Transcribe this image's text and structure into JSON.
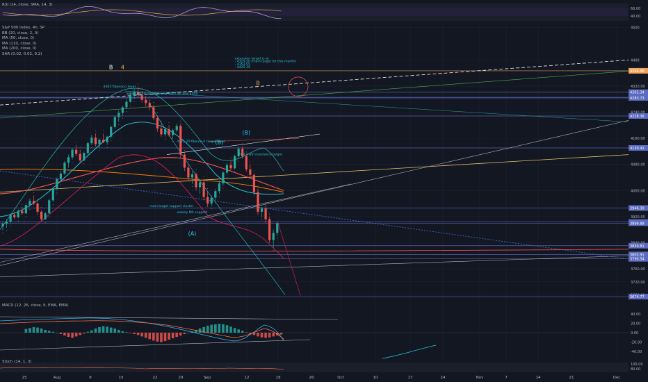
{
  "chart_data": {
    "type": "line",
    "title": "S&P 500 Index, 4h, SP",
    "x_ticks": [
      "25",
      "Aug",
      "8",
      "15",
      "22",
      "29",
      "Sep",
      "12",
      "19",
      "26",
      "Oct",
      "10",
      "17",
      "24",
      "Nov",
      "7",
      "14",
      "21",
      "Dec"
    ],
    "y_ticks": [
      "4500",
      "4400",
      "4320.00",
      "4240.00",
      "4160.00",
      "4080.00",
      "4000.00",
      "3920.00",
      "3840.00",
      "3760.00",
      "3720.00",
      "3680.00"
    ],
    "ylim": [
      3660,
      4520
    ],
    "price_labels": [
      {
        "text": "4366.88",
        "value": 4366.88,
        "color": "#f0a35c"
      },
      {
        "text": "4301.34",
        "value": 4301.34,
        "color": "#5c6bc0"
      },
      {
        "text": "4285.75",
        "value": 4285.75,
        "color": "#5c6bc0"
      },
      {
        "text": "4283.73",
        "value": 4283.73,
        "color": "#5c6bc0"
      },
      {
        "text": "4228.36",
        "value": 4228.36,
        "color": "#5c6bc0"
      },
      {
        "text": "4130.42",
        "value": 4130.42,
        "color": "#5c6bc0"
      },
      {
        "text": "3946.30",
        "value": 3946.3,
        "color": "#5c6bc0"
      },
      {
        "text": "3903.42",
        "value": 3903.42,
        "color": "#5c6bc0"
      },
      {
        "text": "3899.88",
        "value": 3899.88,
        "color": "#5c6bc0"
      },
      {
        "text": "3830.81",
        "value": 3830.81,
        "color": "#5c6bc0"
      },
      {
        "text": "3803.91",
        "value": 3803.91,
        "color": "#5c6bc0"
      },
      {
        "text": "3790.54",
        "value": 3790.54,
        "color": "#5c6bc0"
      },
      {
        "text": "3674.77",
        "value": 3674.77,
        "color": "#5c6bc0"
      }
    ],
    "candles": [
      [
        3890,
        3905,
        3878,
        3898
      ],
      [
        3898,
        3912,
        3885,
        3905
      ],
      [
        3905,
        3930,
        3900,
        3925
      ],
      [
        3925,
        3935,
        3912,
        3918
      ],
      [
        3918,
        3942,
        3915,
        3938
      ],
      [
        3938,
        3950,
        3925,
        3930
      ],
      [
        3930,
        3960,
        3928,
        3955
      ],
      [
        3955,
        3975,
        3950,
        3968
      ],
      [
        3968,
        3985,
        3955,
        3960
      ],
      [
        3960,
        3965,
        3925,
        3935
      ],
      [
        3935,
        3940,
        3905,
        3912
      ],
      [
        3912,
        3935,
        3910,
        3930
      ],
      [
        3930,
        3975,
        3928,
        3970
      ],
      [
        3970,
        4010,
        3965,
        4005
      ],
      [
        4005,
        4040,
        4000,
        4035
      ],
      [
        4035,
        4060,
        4025,
        4052
      ],
      [
        4052,
        4090,
        4048,
        4085
      ],
      [
        4085,
        4110,
        4070,
        4102
      ],
      [
        4102,
        4130,
        4095,
        4125
      ],
      [
        4125,
        4140,
        4105,
        4112
      ],
      [
        4112,
        4125,
        4085,
        4092
      ],
      [
        4092,
        4120,
        4090,
        4115
      ],
      [
        4115,
        4150,
        4110,
        4145
      ],
      [
        4145,
        4170,
        4140,
        4162
      ],
      [
        4162,
        4175,
        4135,
        4142
      ],
      [
        4142,
        4160,
        4130,
        4155
      ],
      [
        4155,
        4175,
        4145,
        4148
      ],
      [
        4148,
        4168,
        4140,
        4165
      ],
      [
        4165,
        4200,
        4160,
        4195
      ],
      [
        4195,
        4230,
        4190,
        4225
      ],
      [
        4225,
        4245,
        4210,
        4238
      ],
      [
        4238,
        4260,
        4230,
        4255
      ],
      [
        4255,
        4280,
        4250,
        4272
      ],
      [
        4272,
        4300,
        4268,
        4290
      ],
      [
        4290,
        4312,
        4280,
        4302
      ],
      [
        4302,
        4318,
        4285,
        4292
      ],
      [
        4292,
        4305,
        4270,
        4278
      ],
      [
        4278,
        4290,
        4255,
        4268
      ],
      [
        4268,
        4280,
        4245,
        4255
      ],
      [
        4255,
        4262,
        4215,
        4222
      ],
      [
        4222,
        4230,
        4180,
        4190
      ],
      [
        4190,
        4205,
        4165,
        4172
      ],
      [
        4172,
        4195,
        4165,
        4188
      ],
      [
        4188,
        4200,
        4165,
        4170
      ],
      [
        4170,
        4190,
        4158,
        4185
      ],
      [
        4185,
        4205,
        4178,
        4198
      ],
      [
        4198,
        4205,
        4100,
        4110
      ],
      [
        4110,
        4115,
        4060,
        4070
      ],
      [
        4070,
        4080,
        4030,
        4040
      ],
      [
        4040,
        4060,
        4020,
        4050
      ],
      [
        4050,
        4055,
        4000,
        4010
      ],
      [
        4010,
        4030,
        3990,
        4025
      ],
      [
        4025,
        4035,
        3970,
        3980
      ],
      [
        3980,
        3998,
        3950,
        3960
      ],
      [
        3960,
        3985,
        3952,
        3978
      ],
      [
        3978,
        4005,
        3970,
        3998
      ],
      [
        3998,
        4030,
        3990,
        4022
      ],
      [
        4022,
        4060,
        4015,
        4055
      ],
      [
        4055,
        4085,
        4048,
        4078
      ],
      [
        4078,
        4092,
        4060,
        4068
      ],
      [
        4068,
        4110,
        4065,
        4105
      ],
      [
        4105,
        4135,
        4098,
        4128
      ],
      [
        4128,
        4135,
        4098,
        4105
      ],
      [
        4105,
        4110,
        4058,
        4065
      ],
      [
        4065,
        4080,
        4040,
        4048
      ],
      [
        4048,
        4052,
        3985,
        3995
      ],
      [
        3995,
        4005,
        3925,
        3935
      ],
      [
        3935,
        3950,
        3918,
        3945
      ],
      [
        3945,
        3955,
        3900,
        3912
      ],
      [
        3912,
        3920,
        3840,
        3848
      ],
      [
        3848,
        3880,
        3825,
        3870
      ],
      [
        3870,
        3905,
        3862,
        3900
      ]
    ],
    "annotations": [
      {
        "text": "B",
        "price": 4372,
        "candle": 28,
        "color": "#ffffff"
      },
      {
        "text": "4",
        "price": 4372,
        "candle": 31,
        "color": "#f0a35c"
      },
      {
        "text": "(B)",
        "price": 4172,
        "candle": 63,
        "color": "#26c6da"
      },
      {
        "text": "(B)",
        "price": 4142,
        "candle": 56,
        "color": "#26c6da"
      },
      {
        "text": "(A)",
        "price": 3862,
        "candle": 49,
        "color": "#26c6da"
      },
      {
        "text": "B",
        "price": 4323,
        "candle": 66,
        "color": "#f0a35c"
      }
    ],
    "notes": [
      {
        "text": "extension target is at",
        "price": 4402,
        "candle": 60
      },
      {
        "text": "- 4315-20  (main target for this month)",
        "price": 4393,
        "candle": 60
      },
      {
        "text": "- 4353-55",
        "price": 4384,
        "candle": 60
      },
      {
        "text": "- 4425-35",
        "price": 4375,
        "candle": 60
      },
      {
        "text": "4305 fibonacci level",
        "price": 4316,
        "candle": 26
      },
      {
        "text": "weekly MA1 resistance at 4267.80 and 4305",
        "price": 4293,
        "candle": 32
      },
      {
        "text": "4125.20 fibonacci target level",
        "price": 4148,
        "candle": 45
      },
      {
        "text": "First main resistance target",
        "price": 4108,
        "candle": 61
      },
      {
        "text": "main target support cluster",
        "price": 3950,
        "candle": 38
      },
      {
        "text": "weekly MA support",
        "price": 3930,
        "candle": 45
      }
    ],
    "rsi": {
      "label": "RSI (14, close, SMA, 14, 3)",
      "ticks": [
        "60.00",
        "40.00"
      ],
      "ylim": [
        20,
        80
      ]
    },
    "macd": {
      "label": "MACD (12, 26, close, 9, EMA, EMA)",
      "ticks": [
        "40.00",
        "20.00",
        "0.00",
        "-20.00",
        "-40.00"
      ],
      "ylim": [
        -55,
        55
      ],
      "hist": [
        8,
        10,
        12,
        11,
        9,
        6,
        4,
        2,
        0,
        -3,
        -6,
        -9,
        -11,
        -8,
        -5,
        -2,
        2,
        5,
        9,
        12,
        14,
        13,
        11,
        9,
        6,
        3,
        1,
        -1,
        -3,
        -5,
        -8,
        -11,
        -14,
        -17,
        -19,
        -20,
        -18,
        -15,
        -12,
        -9,
        -6,
        -3,
        0,
        3,
        6,
        9,
        12,
        15,
        17,
        18,
        19,
        18,
        16,
        13,
        10,
        7,
        4,
        1,
        -2,
        -5,
        -8,
        -10,
        -11,
        -10,
        -8,
        -6,
        -4
      ]
    },
    "stoch": {
      "label": "Stoch (14, 1, 3)",
      "ticks": [
        "100.00",
        "80.00"
      ],
      "ylim": [
        -10,
        110
      ]
    },
    "indicators": [
      "BB (20, close, 2, 0)",
      "MA (50, close, 0)",
      "MA (110, close, 0)",
      "MA (200, close, 0)",
      "SAR (0.02, 0.02, 0.2)"
    ]
  }
}
